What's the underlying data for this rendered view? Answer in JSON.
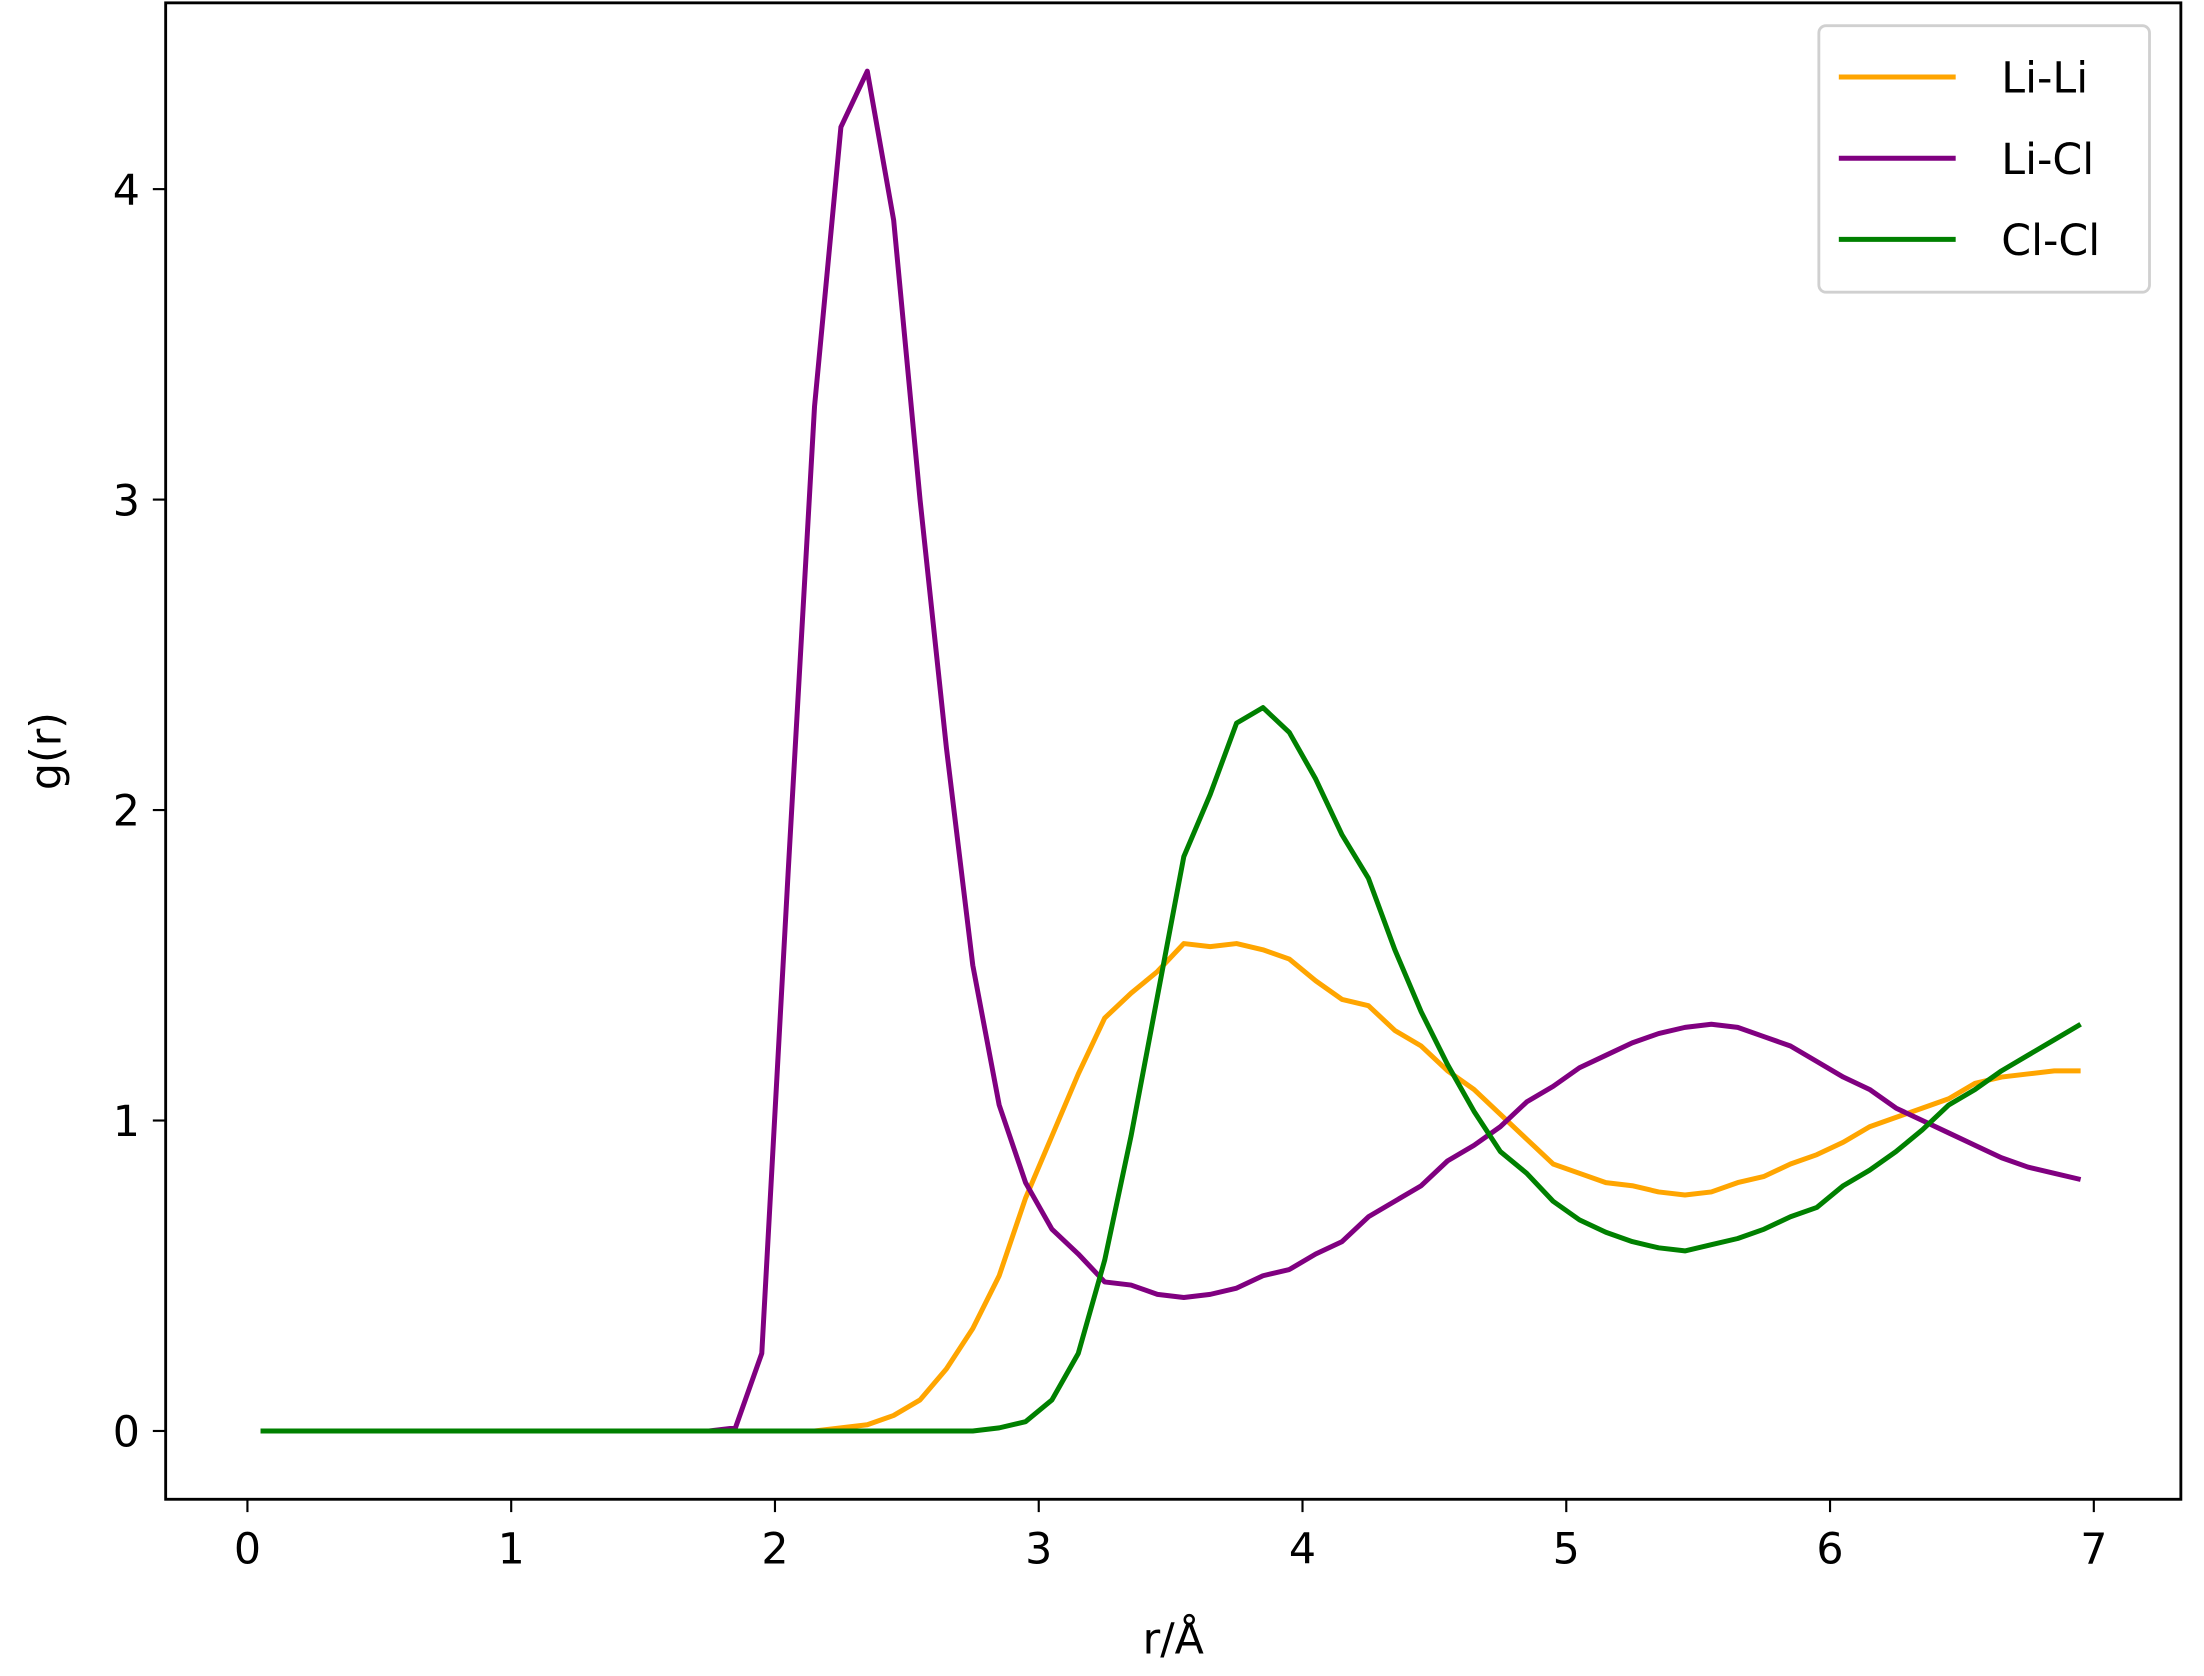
{
  "chart_data": {
    "type": "line",
    "x_label": "r/Å",
    "y_label": "g(r)",
    "x": [
      0.05,
      0.15,
      0.25,
      0.35,
      0.45,
      0.55,
      0.65,
      0.75,
      0.85,
      0.95,
      1.05,
      1.15,
      1.25,
      1.35,
      1.45,
      1.55,
      1.65,
      1.75,
      1.85,
      1.95,
      2.05,
      2.15,
      2.25,
      2.35,
      2.45,
      2.55,
      2.65,
      2.75,
      2.85,
      2.95,
      3.05,
      3.15,
      3.25,
      3.35,
      3.45,
      3.55,
      3.65,
      3.75,
      3.85,
      3.95,
      4.05,
      4.15,
      4.25,
      4.35,
      4.45,
      4.55,
      4.65,
      4.75,
      4.85,
      4.95,
      5.05,
      5.15,
      5.25,
      5.35,
      5.45,
      5.55,
      5.65,
      5.75,
      5.85,
      5.95,
      6.05,
      6.15,
      6.25,
      6.35,
      6.45,
      6.55,
      6.65,
      6.75,
      6.85,
      6.95
    ],
    "series": [
      {
        "name": "Li-Li",
        "color": "#ffa500",
        "values": [
          0,
          0,
          0,
          0,
          0,
          0,
          0,
          0,
          0,
          0,
          0,
          0,
          0,
          0,
          0,
          0,
          0,
          0,
          0,
          0,
          0,
          0,
          0.01,
          0.02,
          0.05,
          0.1,
          0.2,
          0.33,
          0.5,
          0.75,
          0.95,
          1.15,
          1.33,
          1.41,
          1.48,
          1.57,
          1.56,
          1.57,
          1.55,
          1.52,
          1.45,
          1.39,
          1.37,
          1.29,
          1.24,
          1.16,
          1.1,
          1.02,
          0.94,
          0.86,
          0.83,
          0.8,
          0.79,
          0.77,
          0.76,
          0.77,
          0.8,
          0.82,
          0.86,
          0.89,
          0.93,
          0.98,
          1.01,
          1.04,
          1.07,
          1.12,
          1.14,
          1.15,
          1.16,
          1.16
        ]
      },
      {
        "name": "Li-Cl",
        "color": "#800080",
        "values": [
          0,
          0,
          0,
          0,
          0,
          0,
          0,
          0,
          0,
          0,
          0,
          0,
          0,
          0,
          0,
          0,
          0,
          0,
          0.01,
          0.25,
          1.8,
          3.3,
          4.2,
          4.38,
          3.9,
          3.0,
          2.2,
          1.5,
          1.05,
          0.8,
          0.65,
          0.57,
          0.48,
          0.47,
          0.44,
          0.43,
          0.44,
          0.46,
          0.5,
          0.52,
          0.57,
          0.61,
          0.69,
          0.74,
          0.79,
          0.87,
          0.92,
          0.98,
          1.06,
          1.11,
          1.17,
          1.21,
          1.25,
          1.28,
          1.3,
          1.31,
          1.3,
          1.27,
          1.24,
          1.19,
          1.14,
          1.1,
          1.04,
          1.0,
          0.96,
          0.92,
          0.88,
          0.85,
          0.83,
          0.81
        ]
      },
      {
        "name": "Cl-Cl",
        "color": "#008000",
        "values": [
          0,
          0,
          0,
          0,
          0,
          0,
          0,
          0,
          0,
          0,
          0,
          0,
          0,
          0,
          0,
          0,
          0,
          0,
          0,
          0,
          0,
          0,
          0,
          0,
          0,
          0,
          0,
          0,
          0.01,
          0.03,
          0.1,
          0.25,
          0.55,
          0.95,
          1.4,
          1.85,
          2.05,
          2.28,
          2.33,
          2.25,
          2.1,
          1.92,
          1.78,
          1.55,
          1.35,
          1.18,
          1.03,
          0.9,
          0.83,
          0.74,
          0.68,
          0.64,
          0.61,
          0.59,
          0.58,
          0.6,
          0.62,
          0.65,
          0.69,
          0.72,
          0.79,
          0.84,
          0.9,
          0.97,
          1.05,
          1.1,
          1.16,
          1.21,
          1.26,
          1.31
        ]
      }
    ],
    "xlim": [
      -0.31,
      7.33
    ],
    "ylim": [
      -0.22,
      4.6
    ],
    "xticks": [
      0,
      1,
      2,
      3,
      4,
      5,
      6,
      7
    ],
    "yticks": [
      0,
      1,
      2,
      3,
      4
    ],
    "legend": "upper right",
    "grid": false
  }
}
